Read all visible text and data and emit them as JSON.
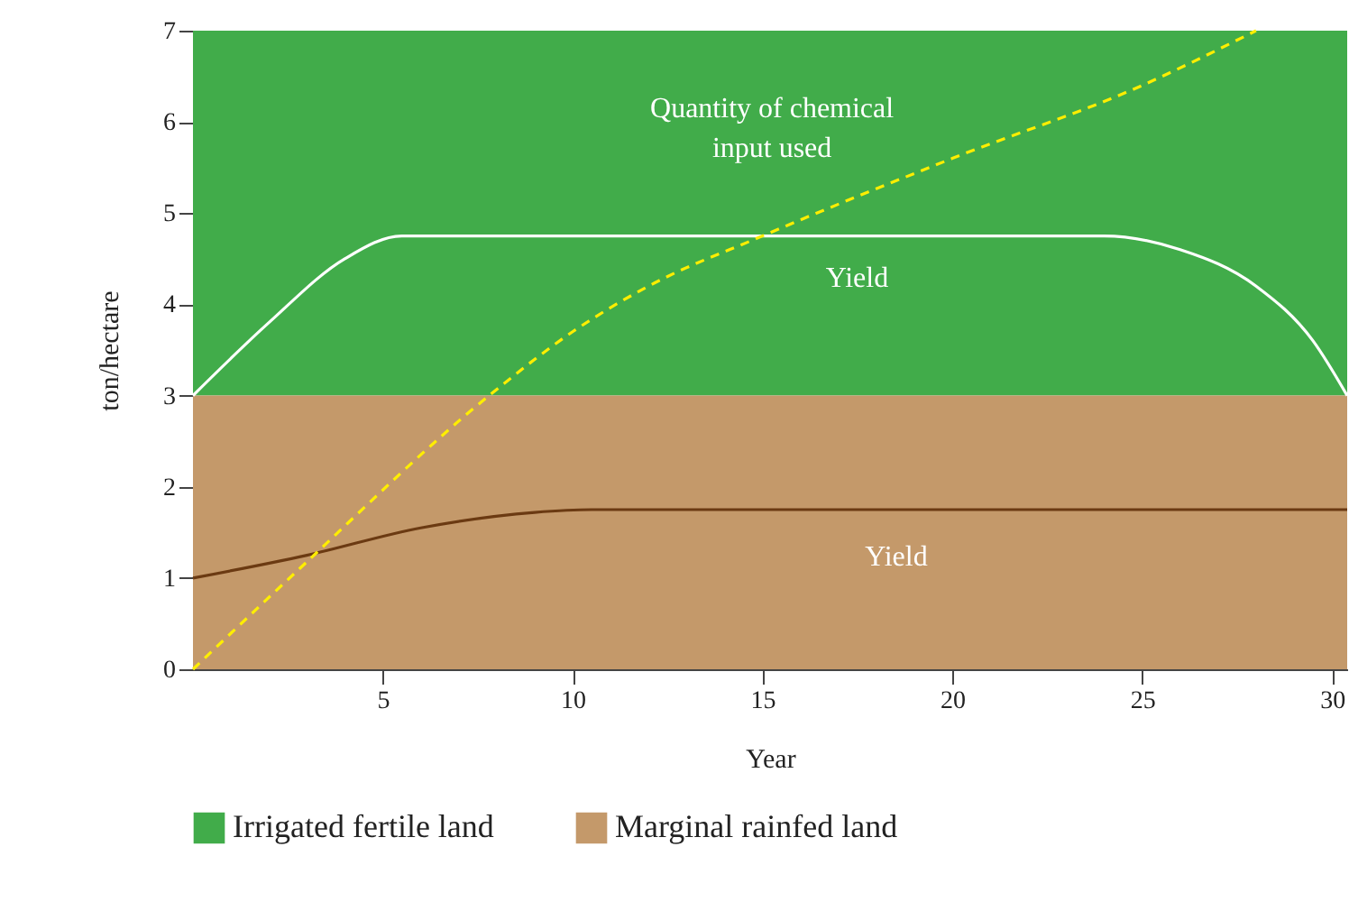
{
  "chart_data": {
    "type": "line",
    "xlabel": "Year",
    "ylabel": "ton/hectare",
    "xlim": [
      0,
      30.4
    ],
    "xticks": [
      5,
      10,
      15,
      20,
      25,
      30
    ],
    "ylim": [
      0,
      7
    ],
    "yticks": [
      0,
      1,
      2,
      3,
      4,
      5,
      6,
      7
    ],
    "grid": false,
    "legend": "bottom",
    "marker": "none",
    "line_style": "solid",
    "bands": [
      {
        "axis": "y",
        "from": 3,
        "to": 7,
        "label": "Irrigated fertile land",
        "color": "#41ac4a"
      },
      {
        "axis": "y",
        "from": 0,
        "to": 3,
        "label": "Marginal rainfed land",
        "color": "#c4996a"
      }
    ],
    "series": [
      {
        "name": "Yield",
        "color": "#ffffff",
        "x": [
          0,
          2,
          4,
          5.5,
          24,
          26,
          28,
          29.5,
          30.4
        ],
        "values": [
          3,
          3.8,
          4.5,
          4.75,
          4.75,
          4.6,
          4.2,
          3.6,
          3
        ]
      },
      {
        "name": "Yield",
        "color": "#6b3a12",
        "x": [
          0,
          3,
          6,
          9,
          10.5,
          30.4
        ],
        "values": [
          1,
          1.25,
          1.55,
          1.72,
          1.75,
          1.75
        ]
      },
      {
        "name": "Quantity of chemical input used",
        "color": "#ffee00",
        "line_style": "dashed",
        "x": [
          0,
          2.8,
          7.8,
          10,
          12,
          15,
          20,
          25,
          28
        ],
        "values": [
          0,
          1.1,
          3,
          3.7,
          4.2,
          4.75,
          5.6,
          6.4,
          7
        ]
      }
    ]
  }
}
